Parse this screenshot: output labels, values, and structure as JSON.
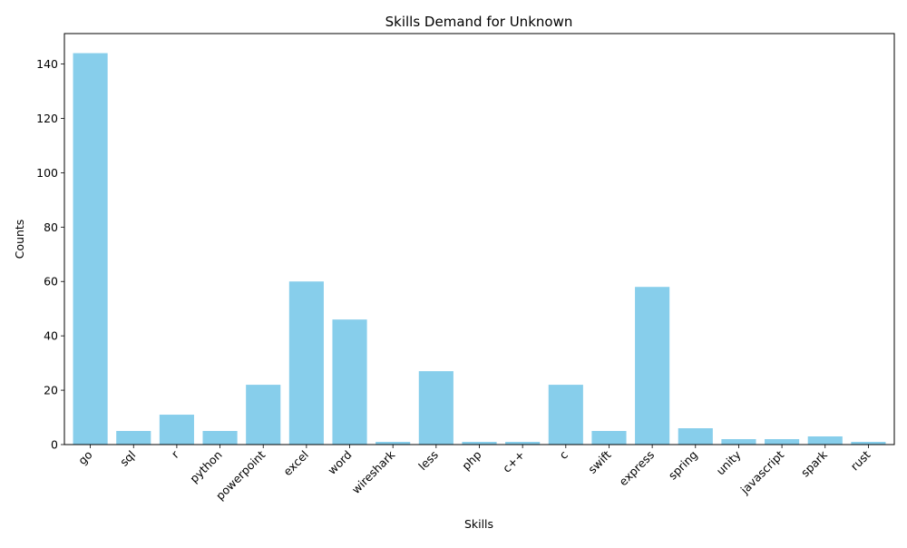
{
  "chart_data": {
    "type": "bar",
    "title": "Skills Demand for Unknown",
    "xlabel": "Skills",
    "ylabel": "Counts",
    "categories": [
      "go",
      "sql",
      "r",
      "python",
      "powerpoint",
      "excel",
      "word",
      "wireshark",
      "less",
      "php",
      "c++",
      "c",
      "swift",
      "express",
      "spring",
      "unity",
      "javascript",
      "spark",
      "rust"
    ],
    "values": [
      144,
      5,
      11,
      5,
      22,
      60,
      46,
      1,
      27,
      1,
      1,
      22,
      5,
      58,
      6,
      2,
      2,
      3,
      1
    ],
    "ylim": [
      0,
      151.2
    ],
    "yticks": [
      0,
      20,
      40,
      60,
      80,
      100,
      120,
      140
    ],
    "bar_color": "#87ceeb",
    "grid": false,
    "legend": "none"
  }
}
